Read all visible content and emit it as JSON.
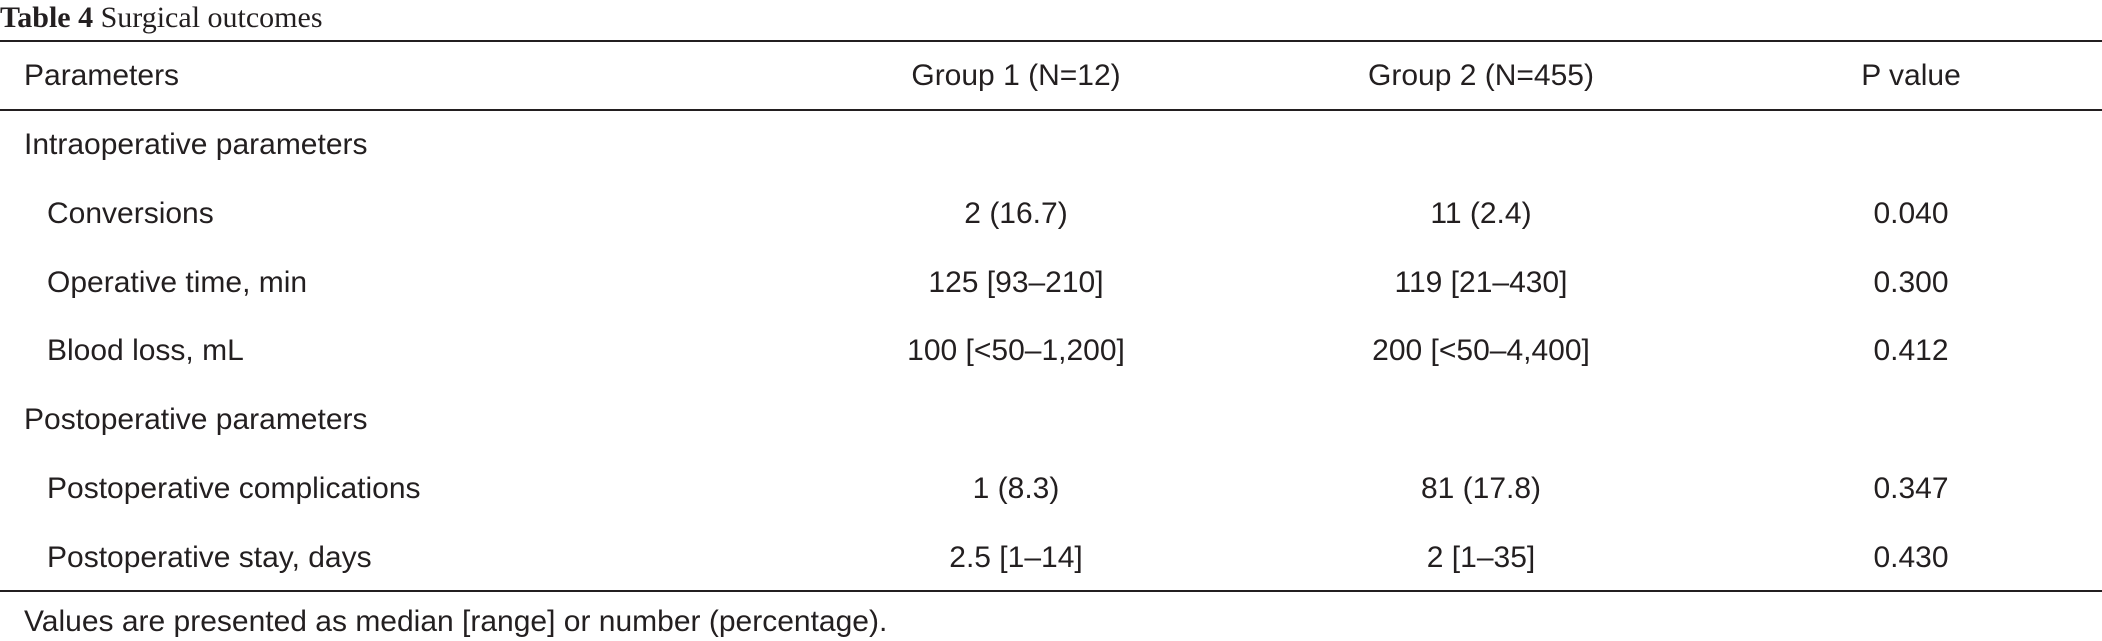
{
  "caption": {
    "label": "Table 4",
    "title": "Surgical outcomes"
  },
  "header": {
    "parameters": "Parameters",
    "group1": "Group 1 (N=12)",
    "group2": "Group 2 (N=455)",
    "p_value": "P value"
  },
  "sections": [
    {
      "title": "Intraoperative parameters",
      "rows": [
        {
          "parameter": "Conversions",
          "group1": "2 (16.7)",
          "group2": "11 (2.4)",
          "p": "0.040"
        },
        {
          "parameter": "Operative time, min",
          "group1": "125 [93–210]",
          "group2": "119 [21–430]",
          "p": "0.300"
        },
        {
          "parameter": "Blood loss, mL",
          "group1": "100 [<50–1,200]",
          "group2": "200 [<50–4,400]",
          "p": "0.412"
        }
      ]
    },
    {
      "title": "Postoperative parameters",
      "rows": [
        {
          "parameter": "Postoperative complications",
          "group1": "1 (8.3)",
          "group2": "81 (17.8)",
          "p": "0.347"
        },
        {
          "parameter": "Postoperative stay, days",
          "group1": "2.5 [1–14]",
          "group2": "2 [1–35]",
          "p": "0.430"
        }
      ]
    }
  ],
  "footnote": "Values are presented as median [range] or number (percentage)."
}
